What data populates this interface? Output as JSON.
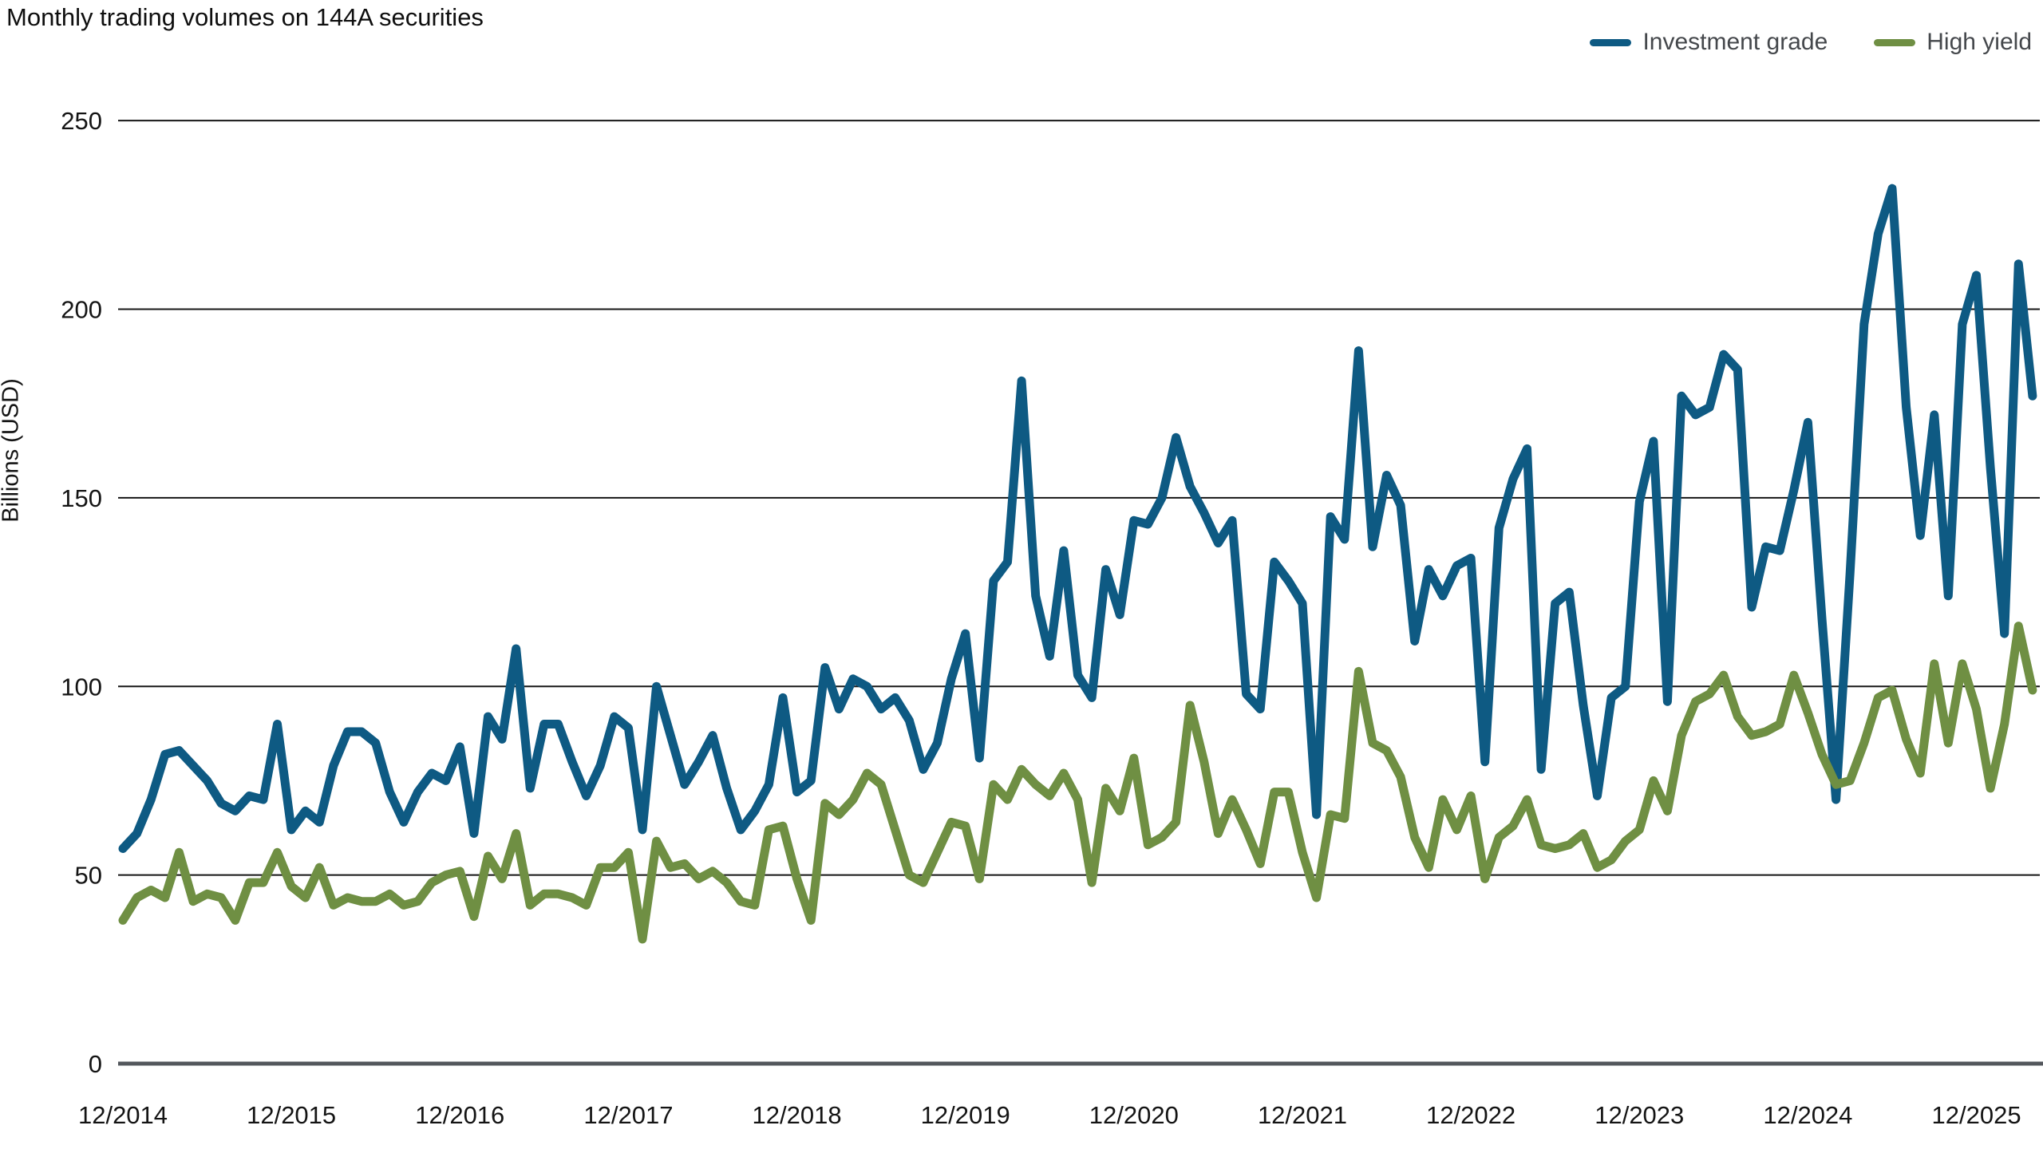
{
  "header": {
    "title": "Monthly trading volumes on 144A securities"
  },
  "y_axis": {
    "label": "Billions (USD)",
    "tick_labels": [
      "0",
      "50",
      "100",
      "150",
      "200",
      "250"
    ]
  },
  "colors": {
    "investment_grade": "#0e5a83",
    "high_yield": "#6f8f43",
    "gridline": "#161616",
    "zero_axis": "#53575c",
    "tick_text": "#141414",
    "legend_text": "#45484c"
  },
  "chart_data": {
    "type": "line",
    "title": "Monthly trading volumes on 144A securities",
    "xlabel": "",
    "ylabel": "Billions (USD)",
    "ylim": [
      0,
      250
    ],
    "grid": "horizontal",
    "legend_position": "top-right",
    "x_tick_labels": [
      "12/2014",
      "12/2015",
      "12/2016",
      "12/2017",
      "12/2018",
      "12/2019",
      "12/2020",
      "12/2021",
      "12/2022",
      "12/2023",
      "12/2024",
      "12/2025"
    ],
    "x_tick_indices": [
      0,
      12,
      24,
      36,
      48,
      60,
      72,
      84,
      96,
      108,
      120,
      132
    ],
    "x_frequency": "monthly",
    "series": [
      {
        "name": "Investment grade",
        "color": "#0e5a83",
        "values": [
          57,
          61,
          70,
          82,
          83,
          79,
          75,
          69,
          67,
          71,
          70,
          90,
          62,
          67,
          64,
          79,
          88,
          88,
          85,
          72,
          64,
          72,
          77,
          75,
          84,
          61,
          92,
          86,
          110,
          73,
          90,
          90,
          80,
          71,
          79,
          92,
          89,
          62,
          100,
          87,
          74,
          80,
          87,
          73,
          62,
          67,
          74,
          97,
          72,
          75,
          105,
          94,
          102,
          100,
          94,
          97,
          91,
          78,
          85,
          102,
          114,
          81,
          128,
          133,
          181,
          124,
          108,
          136,
          103,
          97,
          131,
          119,
          144,
          143,
          150,
          166,
          153,
          146,
          138,
          144,
          98,
          94,
          133,
          128,
          122,
          66,
          145,
          139,
          189,
          137,
          156,
          148,
          112,
          131,
          124,
          132,
          134,
          80,
          142,
          155,
          163,
          78,
          122,
          125,
          95,
          71,
          97,
          100,
          149,
          165,
          96,
          177,
          172,
          174,
          188,
          184,
          121,
          137,
          136,
          152,
          170,
          118,
          70,
          130,
          196,
          220,
          232,
          174,
          140,
          172,
          124,
          196,
          209,
          158,
          114,
          212,
          177
        ]
      },
      {
        "name": "High yield",
        "color": "#6f8f43",
        "values": [
          38,
          44,
          46,
          44,
          56,
          43,
          45,
          44,
          38,
          48,
          48,
          56,
          47,
          44,
          52,
          42,
          44,
          43,
          43,
          45,
          42,
          43,
          48,
          50,
          51,
          39,
          55,
          49,
          61,
          42,
          45,
          45,
          44,
          42,
          52,
          52,
          56,
          33,
          59,
          52,
          53,
          49,
          51,
          48,
          43,
          42,
          62,
          63,
          49,
          38,
          69,
          66,
          70,
          77,
          74,
          62,
          50,
          48,
          56,
          64,
          63,
          49,
          74,
          70,
          78,
          74,
          71,
          77,
          70,
          48,
          73,
          67,
          81,
          58,
          60,
          64,
          95,
          80,
          61,
          70,
          62,
          53,
          72,
          72,
          56,
          44,
          66,
          65,
          104,
          85,
          83,
          76,
          60,
          52,
          70,
          62,
          71,
          49,
          60,
          63,
          70,
          58,
          57,
          58,
          61,
          52,
          54,
          59,
          62,
          75,
          67,
          87,
          96,
          98,
          103,
          92,
          87,
          88,
          90,
          103,
          93,
          82,
          74,
          75,
          85,
          97,
          99,
          86,
          77,
          106,
          85,
          106,
          94,
          73,
          90,
          116,
          99
        ]
      }
    ]
  }
}
